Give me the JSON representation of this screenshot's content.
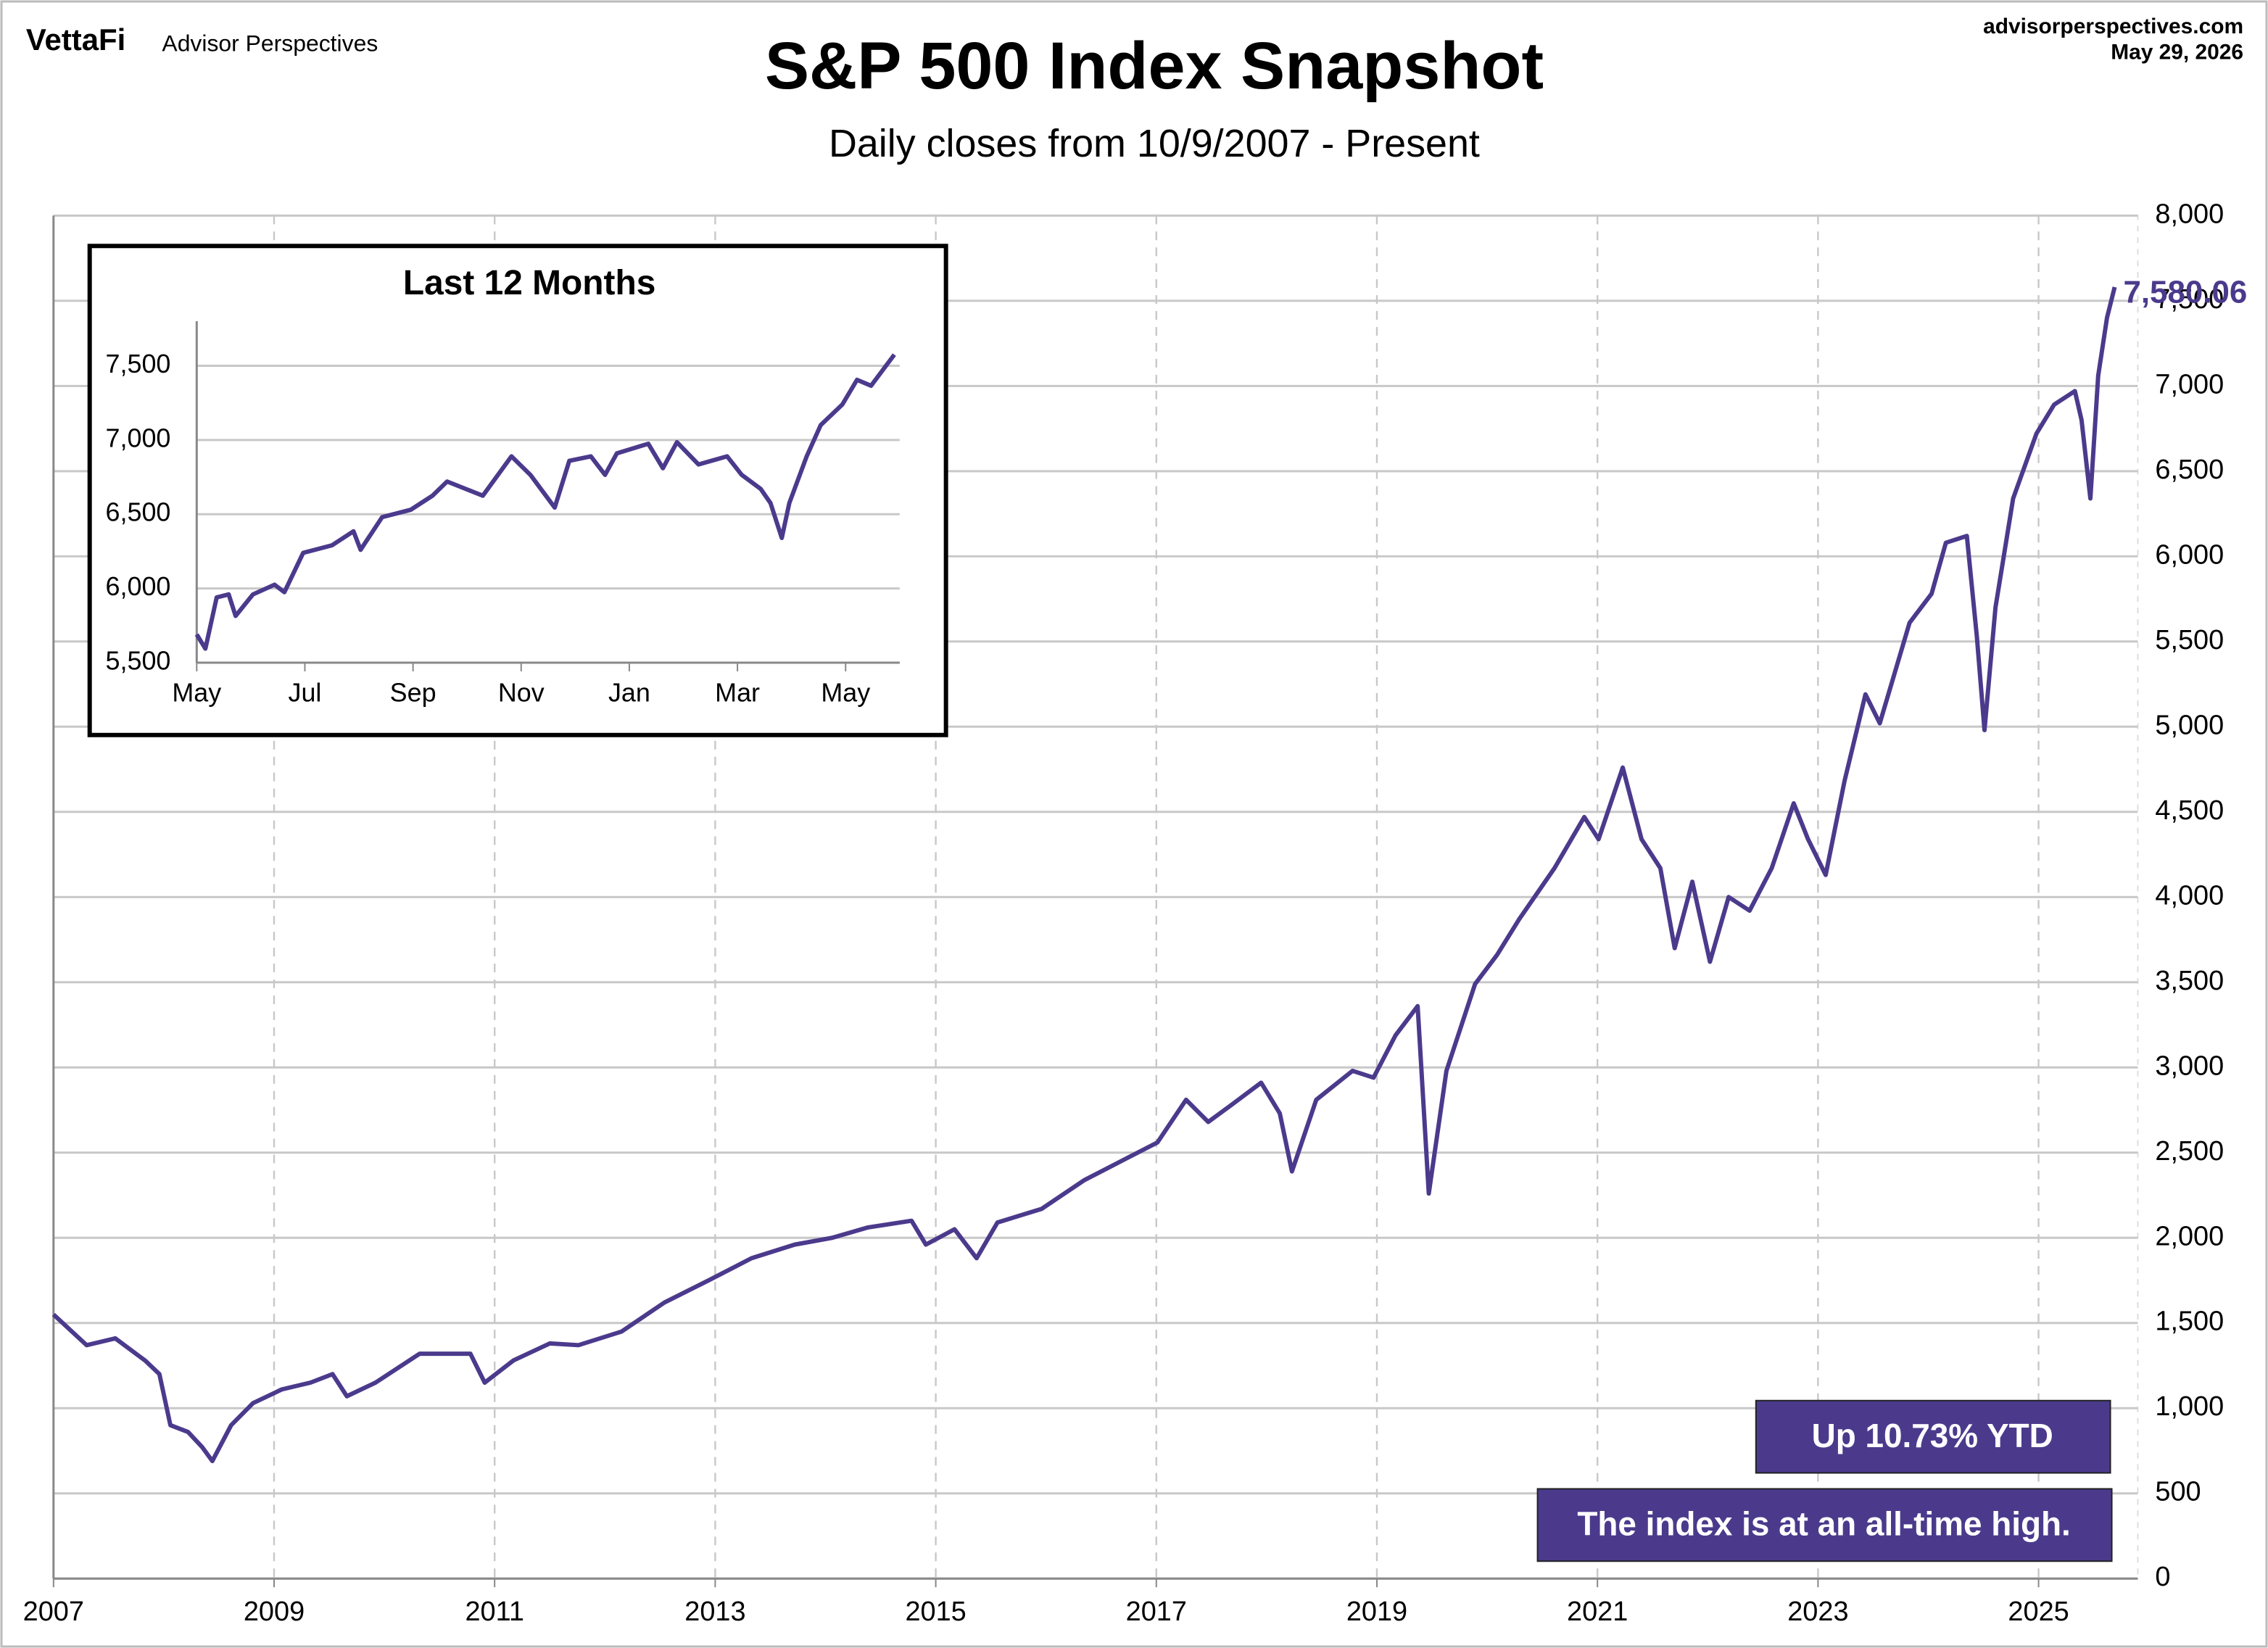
{
  "header": {
    "brand": "VettaFi",
    "publisher": "Advisor Perspectives",
    "site": "advisorperspectives.com",
    "date": "May 29, 2026"
  },
  "chart_data": [
    {
      "type": "line",
      "title": "S&P 500 Index Snapshot",
      "subtitle": "Daily closes from 10/9/2007 - Present",
      "color": "#4b3a8c",
      "x": [
        2007.0,
        2007.3,
        2007.56,
        2007.83,
        2007.96,
        2008.06,
        2008.22,
        2008.35,
        2008.44,
        2008.61,
        2008.81,
        2009.07,
        2009.33,
        2009.53,
        2009.66,
        2009.92,
        2010.32,
        2010.58,
        2010.78,
        2010.91,
        2011.17,
        2011.5,
        2011.76,
        2012.15,
        2012.54,
        2012.94,
        2013.33,
        2013.72,
        2014.06,
        2014.38,
        2014.78,
        2014.91,
        2015.17,
        2015.37,
        2015.56,
        2015.96,
        2016.35,
        2016.74,
        2017.01,
        2017.27,
        2017.47,
        2017.66,
        2017.95,
        2018.12,
        2018.23,
        2018.45,
        2018.78,
        2018.97,
        2019.17,
        2019.37,
        2019.47,
        2019.63,
        2019.89,
        2020.09,
        2020.29,
        2020.61,
        2020.88,
        2021.01,
        2021.23,
        2021.4,
        2021.57,
        2021.7,
        2021.86,
        2022.02,
        2022.19,
        2022.38,
        2022.58,
        2022.78,
        2022.91,
        2023.07,
        2023.24,
        2023.43,
        2023.56,
        2023.83,
        2024.03,
        2024.16,
        2024.35,
        2024.44,
        2024.51,
        2024.61,
        2024.77,
        2024.98,
        2025.14,
        2025.33,
        2025.39,
        2025.47,
        2025.54,
        2025.62,
        2025.69
      ],
      "values": [
        1550,
        1370,
        1410,
        1280,
        1200,
        900,
        860,
        770,
        690,
        900,
        1030,
        1110,
        1150,
        1200,
        1070,
        1150,
        1320,
        1320,
        1320,
        1150,
        1280,
        1380,
        1370,
        1450,
        1620,
        1750,
        1880,
        1960,
        2000,
        2060,
        2100,
        1960,
        2050,
        1880,
        2090,
        2170,
        2340,
        2470,
        2560,
        2810,
        2680,
        2770,
        2910,
        2730,
        2390,
        2810,
        2980,
        2940,
        3190,
        3360,
        2260,
        2980,
        3490,
        3660,
        3870,
        4170,
        4470,
        4340,
        4760,
        4340,
        4170,
        3700,
        4090,
        3620,
        4000,
        3920,
        4170,
        4550,
        4340,
        4130,
        4680,
        5190,
        5020,
        5610,
        5780,
        6080,
        6120,
        5530,
        4980,
        5700,
        6340,
        6720,
        6890,
        6970,
        6800,
        6340,
        7060,
        7400,
        7580.06
      ],
      "last_value_label": "7,580.06",
      "xlim": [
        2007,
        2025.9
      ],
      "xticks": [
        2007,
        2009,
        2011,
        2013,
        2015,
        2017,
        2019,
        2021,
        2023,
        2025
      ],
      "ylim": [
        0,
        8000
      ],
      "yticks": [
        0,
        500,
        {
          "value": 1000,
          "label": "1,000"
        },
        {
          "value": 1500,
          "label": "1,500"
        },
        {
          "value": 2000,
          "label": "2,000"
        },
        {
          "value": 2500,
          "label": "2,500"
        },
        {
          "value": 3000,
          "label": "3,000"
        },
        {
          "value": 3500,
          "label": "3,500"
        },
        {
          "value": 4000,
          "label": "4,000"
        },
        {
          "value": 4500,
          "label": "4,500"
        },
        {
          "value": 5000,
          "label": "5,000"
        },
        {
          "value": 5500,
          "label": "5,500"
        },
        {
          "value": 6000,
          "label": "6,000"
        },
        {
          "value": 6500,
          "label": "6,500"
        },
        {
          "value": 7000,
          "label": "7,000"
        },
        {
          "value": 7500,
          "label": "7,500"
        },
        {
          "value": 8000,
          "label": "8,000"
        }
      ],
      "grid": true,
      "annotations": [
        "Up 10.73% YTD",
        "The index is at an all-time high."
      ]
    },
    {
      "type": "line",
      "title": "Last 12 Months",
      "color": "#4b3a8c",
      "x": [
        0,
        0.16,
        0.37,
        0.59,
        0.72,
        1.04,
        1.44,
        1.62,
        1.97,
        2.5,
        2.9,
        3.03,
        3.43,
        3.96,
        4.36,
        4.63,
        5.29,
        5.82,
        6.17,
        6.62,
        6.89,
        7.29,
        7.55,
        7.77,
        8.35,
        8.62,
        8.88,
        9.28,
        9.81,
        10.08,
        10.43,
        10.61,
        10.82,
        10.96,
        11.28,
        11.54,
        11.94,
        12.21,
        12.47,
        12.9
      ],
      "values": [
        5690,
        5595,
        5940,
        5960,
        5815,
        5960,
        6025,
        5975,
        6240,
        6290,
        6385,
        6260,
        6480,
        6530,
        6625,
        6720,
        6625,
        6890,
        6765,
        6545,
        6860,
        6890,
        6765,
        6910,
        6975,
        6810,
        6985,
        6835,
        6890,
        6765,
        6670,
        6575,
        6340,
        6575,
        6890,
        7100,
        7240,
        7405,
        7365,
        7575
      ],
      "xlim": [
        0,
        13
      ],
      "xticks": [
        {
          "value": 0,
          "label": "May"
        },
        {
          "value": 2,
          "label": "Jul"
        },
        {
          "value": 4,
          "label": "Sep"
        },
        {
          "value": 6,
          "label": "Nov"
        },
        {
          "value": 8,
          "label": "Jan"
        },
        {
          "value": 10,
          "label": "Mar"
        },
        {
          "value": 12,
          "label": "May"
        }
      ],
      "ylim": [
        5500,
        7800
      ],
      "yticks": [
        {
          "value": 5500,
          "label": "5,500"
        },
        {
          "value": 6000,
          "label": "6,000"
        },
        {
          "value": 6500,
          "label": "6,500"
        },
        {
          "value": 7000,
          "label": "7,000"
        },
        {
          "value": 7500,
          "label": "7,500"
        }
      ],
      "grid": true
    }
  ]
}
